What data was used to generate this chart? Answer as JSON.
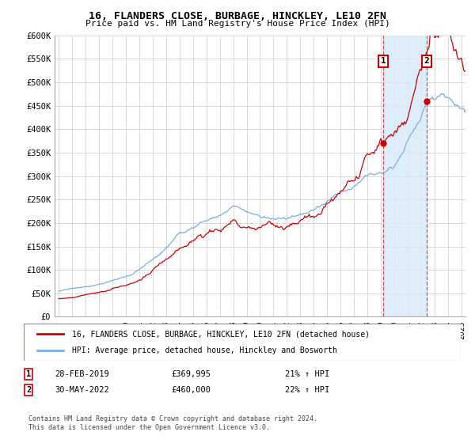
{
  "title": "16, FLANDERS CLOSE, BURBAGE, HINCKLEY, LE10 2FN",
  "subtitle": "Price paid vs. HM Land Registry's House Price Index (HPI)",
  "ylabel_ticks": [
    "£0",
    "£50K",
    "£100K",
    "£150K",
    "£200K",
    "£250K",
    "£300K",
    "£350K",
    "£400K",
    "£450K",
    "£500K",
    "£550K",
    "£600K"
  ],
  "ytick_values": [
    0,
    50000,
    100000,
    150000,
    200000,
    250000,
    300000,
    350000,
    400000,
    450000,
    500000,
    550000,
    600000
  ],
  "xlim_start": 1994.7,
  "xlim_end": 2025.3,
  "ylim_min": 0,
  "ylim_max": 600000,
  "purchase1_date": "28-FEB-2019",
  "purchase1_price": 369995,
  "purchase1_hpi_pct": "21%",
  "purchase1_x": 2019.17,
  "purchase2_date": "30-MAY-2022",
  "purchase2_price": 460000,
  "purchase2_hpi_pct": "22%",
  "purchase2_x": 2022.42,
  "legend_line1": "16, FLANDERS CLOSE, BURBAGE, HINCKLEY, LE10 2FN (detached house)",
  "legend_line2": "HPI: Average price, detached house, Hinckley and Bosworth",
  "line_color_price": "#cc0000",
  "line_color_hpi": "#7aade0",
  "vline_color": "#cc3333",
  "shade_color": "#d8eaf8",
  "footer": "Contains HM Land Registry data © Crown copyright and database right 2024.\nThis data is licensed under the Open Government Licence v3.0.",
  "bg_color": "#ffffff",
  "grid_color": "#cccccc"
}
